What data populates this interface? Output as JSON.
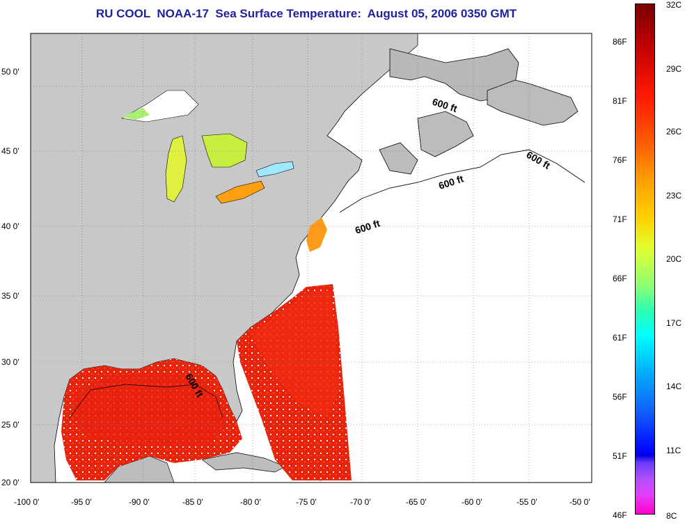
{
  "title": "RU COOL  NOAA-17  Sea Surface Temperature:  August 05, 2006 0350 GMT",
  "axes": {
    "y_labels": [
      "50 0'",
      "45 0'",
      "40 0'",
      "35 0'",
      "30 0'",
      "25 0'",
      "20 0'"
    ],
    "x_labels": [
      "-100 0'",
      "-95 0'",
      "-90 0'",
      "-85 0'",
      "-80 0'",
      "-75 0'",
      "-70 0'",
      "-65 0'",
      "-60 0'",
      "-55 0'",
      "-50 0'"
    ]
  },
  "isobath_labels": [
    "600 ft",
    "600 ft",
    "600 ft",
    "600 ft",
    "600 ft"
  ],
  "colorbar": {
    "fahrenheit": [
      "86F",
      "81F",
      "76F",
      "71F",
      "66F",
      "61F",
      "56F",
      "51F",
      "46F"
    ],
    "celsius": [
      "32C",
      "29C",
      "26C",
      "23C",
      "20C",
      "17C",
      "14C",
      "11C",
      "8C"
    ]
  },
  "colors": {
    "land": "#c8c8c8",
    "no_data": "#ffffff",
    "warm_water": "#ee2a10",
    "title": "#1f1fa0"
  }
}
